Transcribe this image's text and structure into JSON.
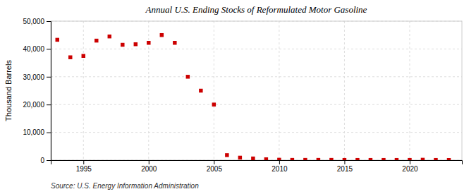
{
  "chart_data": {
    "type": "scatter",
    "title": "Annual U.S. Ending Stocks of Reformulated Motor Gasoline",
    "ylabel": "Thousand Barrels",
    "source": "Source: U.S. Energy Information Administration",
    "x": [
      1993,
      1994,
      1995,
      1996,
      1997,
      1998,
      1999,
      2000,
      2001,
      2002,
      2003,
      2004,
      2005,
      2006,
      2007,
      2008,
      2009,
      2010,
      2011,
      2012,
      2013,
      2014,
      2015,
      2016,
      2017,
      2018,
      2019,
      2020,
      2021,
      2022,
      2023
    ],
    "values": [
      43300,
      37000,
      37500,
      43000,
      44500,
      41500,
      41700,
      42200,
      45000,
      42200,
      30000,
      25000,
      20000,
      1800,
      900,
      600,
      300,
      150,
      100,
      100,
      100,
      100,
      80,
      80,
      80,
      80,
      80,
      80,
      150,
      80,
      60
    ],
    "color": "#cc0000",
    "marker": "square",
    "xlim": [
      1992.5,
      2024
    ],
    "ylim": [
      0,
      50000
    ],
    "xticks": [
      1995,
      2000,
      2005,
      2010,
      2015,
      2020
    ],
    "yticks": [
      0,
      {
        "value": 10000,
        "label": "10,000"
      },
      {
        "value": 20000,
        "label": "20,000"
      },
      {
        "value": 30000,
        "label": "30,000"
      },
      {
        "value": 40000,
        "label": "40,000"
      },
      {
        "value": 50000,
        "label": "50,000"
      }
    ],
    "grid": true
  }
}
